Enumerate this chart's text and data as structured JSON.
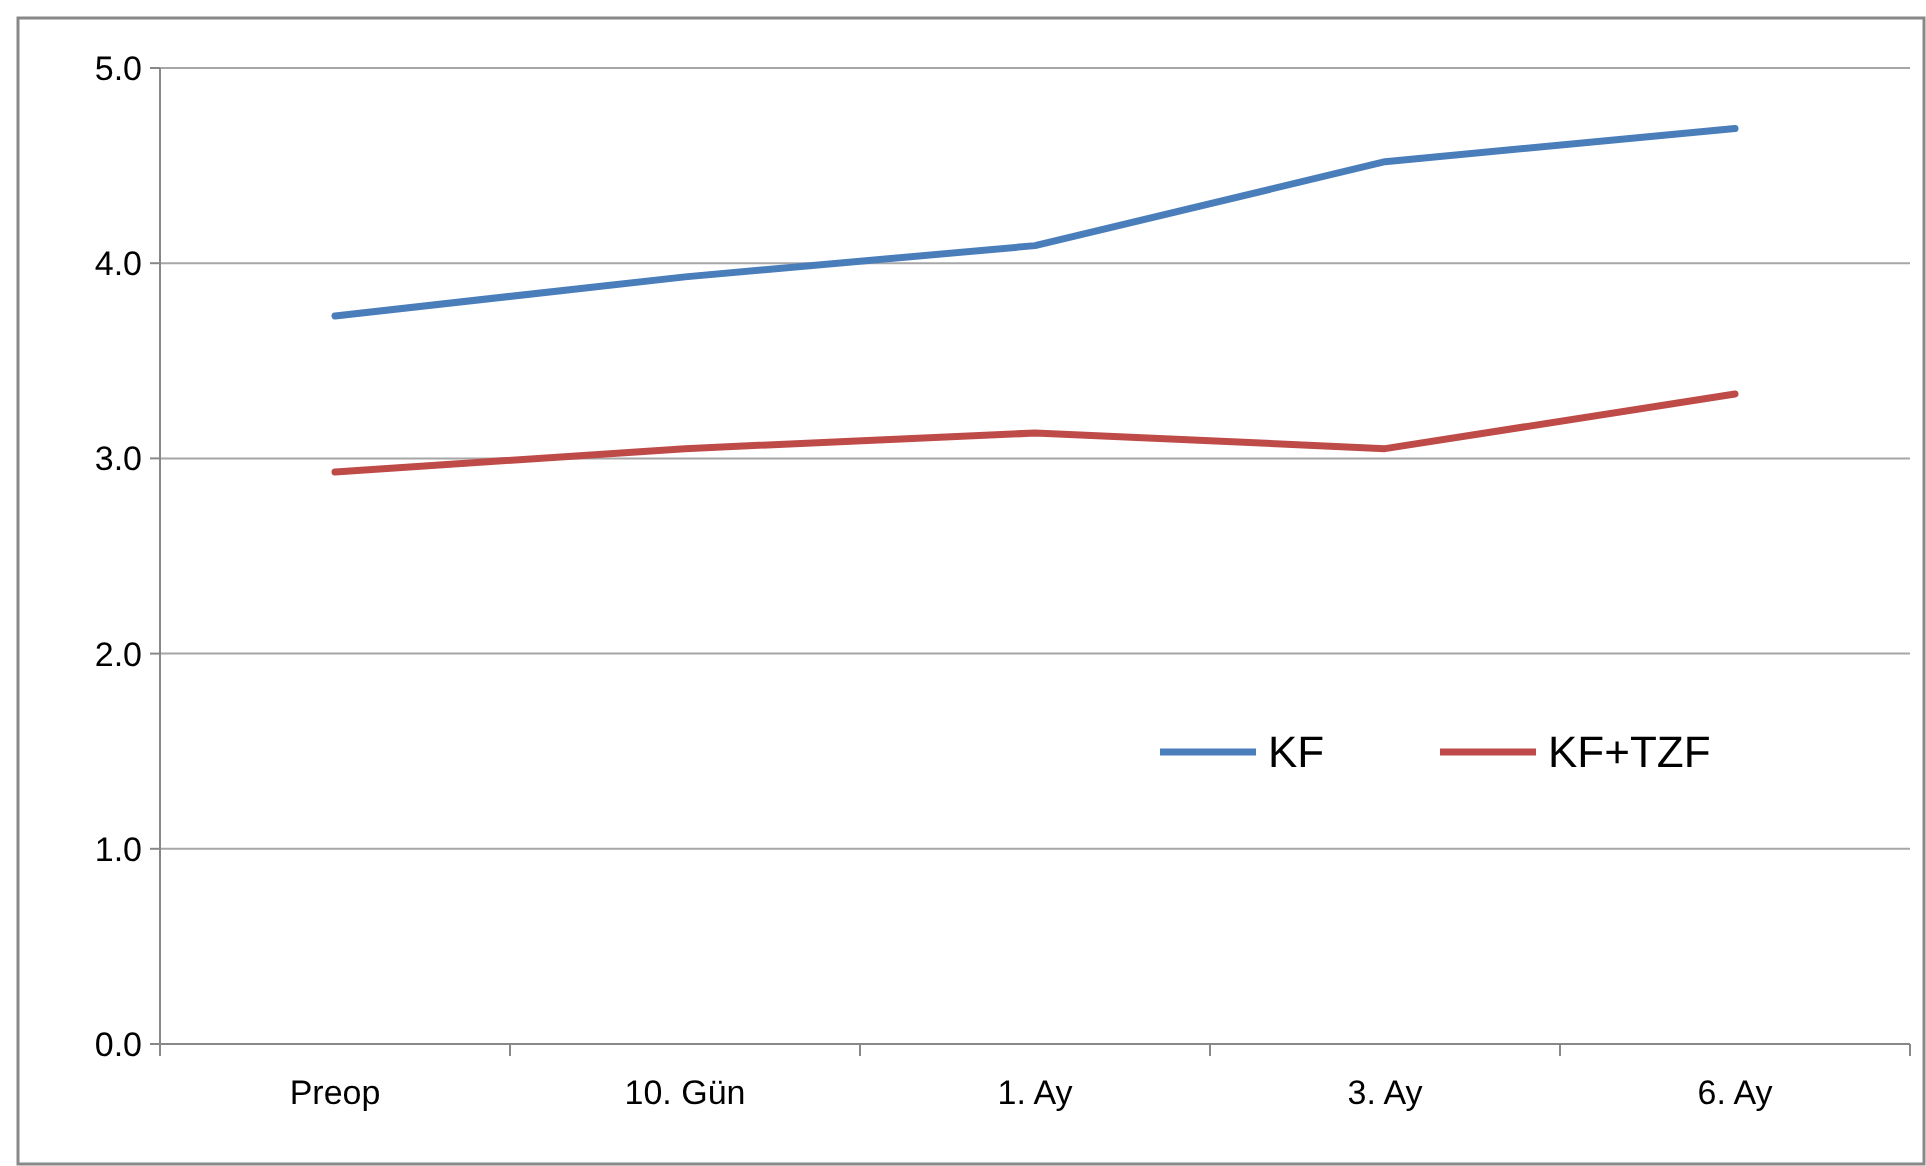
{
  "chart_data": {
    "type": "line",
    "categories": [
      "Preop",
      "10. Gün",
      "1. Ay",
      "3. Ay",
      "6. Ay"
    ],
    "series": [
      {
        "name": "KF",
        "color": "#4a7ebb",
        "values": [
          3.73,
          3.93,
          4.09,
          4.52,
          4.69
        ]
      },
      {
        "name": "KF+TZF",
        "color": "#be4b48",
        "values": [
          2.93,
          3.05,
          3.13,
          3.05,
          3.33
        ]
      }
    ],
    "ylim": [
      0,
      5
    ],
    "yticks": [
      {
        "value": 0,
        "label": "0.0"
      },
      {
        "value": 1,
        "label": "1.0"
      },
      {
        "value": 2,
        "label": "2.0"
      },
      {
        "value": 3,
        "label": "3.0"
      },
      {
        "value": 4,
        "label": "4.0"
      },
      {
        "value": 5,
        "label": "5.0"
      }
    ],
    "grid": "y",
    "legend": "right"
  }
}
